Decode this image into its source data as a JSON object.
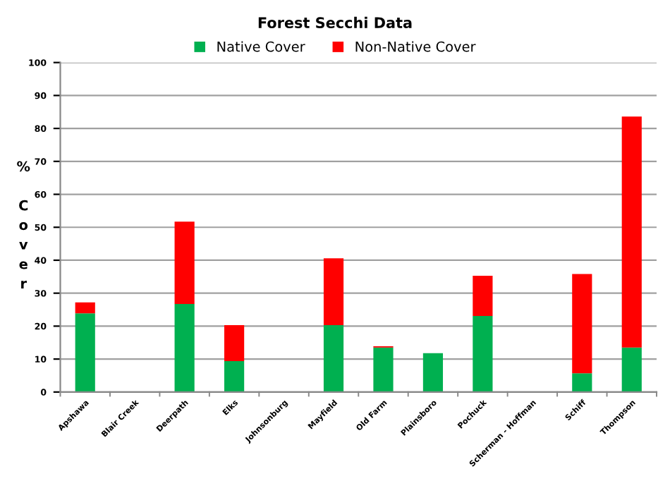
{
  "chart_data": {
    "type": "bar",
    "title": "Forest Secchi Data",
    "ylabel": "% Cover",
    "stacked": true,
    "categories": [
      "Apshawa",
      "Blair Creek",
      "Deerpath",
      "Elks",
      "Johnsonburg",
      "Mayfield",
      "Old Farm",
      "Plainsboro",
      "Pochuck",
      "Scherman - Hoffman",
      "Schiff",
      "Thompson"
    ],
    "series": [
      {
        "name": "Native Cover",
        "color": "#00b050",
        "values": [
          23.9,
          0,
          26.7,
          9.4,
          0,
          20.3,
          13.5,
          11.8,
          23.1,
          0,
          5.7,
          13.5
        ]
      },
      {
        "name": "Non-Native Cover",
        "color": "#ff0000",
        "values": [
          3.3,
          0,
          25,
          10.9,
          0,
          20.3,
          0.4,
          0,
          12.2,
          0,
          30.1,
          70.1
        ]
      }
    ],
    "ylim": [
      0,
      100
    ],
    "yticks": [
      0,
      10,
      20,
      30,
      40,
      50,
      60,
      70,
      80,
      90,
      100
    ],
    "grid": "y",
    "legend": "top"
  }
}
